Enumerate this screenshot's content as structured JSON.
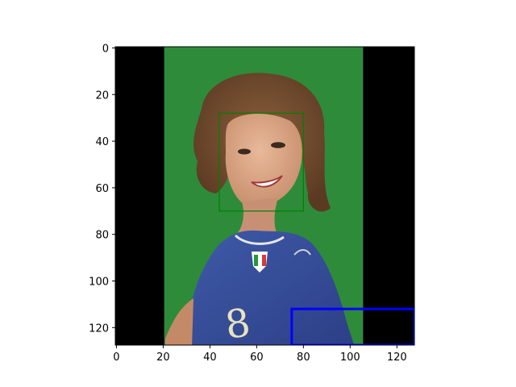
{
  "chart_data": {
    "type": "image",
    "title": "",
    "xlabel": "",
    "ylabel": "",
    "xlim": [
      -0.5,
      127.5
    ],
    "ylim": [
      127.5,
      -0.5
    ],
    "x_ticks": [
      0,
      20,
      40,
      60,
      80,
      100,
      120
    ],
    "y_ticks": [
      0,
      20,
      40,
      60,
      80,
      100,
      120
    ],
    "image_regions": [
      {
        "name": "left-padding",
        "x_range": [
          -0.5,
          20.5
        ],
        "y_range": [
          -0.5,
          127.5
        ],
        "color": "#000000"
      },
      {
        "name": "photo",
        "x_range": [
          20.5,
          105.5
        ],
        "y_range": [
          -0.5,
          127.5
        ],
        "color": "#2e8b3a"
      },
      {
        "name": "right-padding",
        "x_range": [
          105.5,
          127.5
        ],
        "y_range": [
          -0.5,
          127.5
        ],
        "color": "#000000"
      }
    ],
    "boxes": [
      {
        "name": "face-box",
        "x": [
          44,
          80
        ],
        "y": [
          28,
          70
        ],
        "color": "#008000"
      },
      {
        "name": "watermark-box",
        "x": [
          75,
          127.5
        ],
        "y": [
          112,
          127.5
        ],
        "color": "#0000ff"
      }
    ]
  }
}
